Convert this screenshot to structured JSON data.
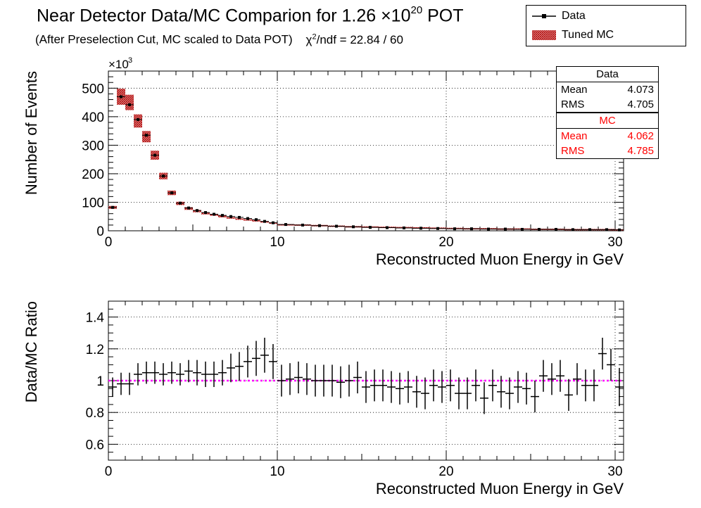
{
  "page": {
    "title": "Near Detector Data/MC Comparion for 1.26 ×10",
    "title_exp": "20",
    "title_suffix": " POT",
    "subtitle": "(After Preselection Cut, MC scaled to Data POT)",
    "chi2_label": "χ",
    "chi2_exp": "2",
    "chi2_value": "/ndf = 22.84 / 60"
  },
  "legend": [
    {
      "label": "Data",
      "style": "marker-line",
      "color": "#000000"
    },
    {
      "label": "Tuned MC",
      "style": "hatched-fill",
      "color": "#c00000"
    }
  ],
  "stats": {
    "data": {
      "title": "Data",
      "mean_label": "Mean",
      "mean": "4.073",
      "rms_label": "RMS",
      "rms": "4.705",
      "color": "#000000"
    },
    "mc": {
      "title": "MC",
      "mean_label": "Mean",
      "mean": "4.062",
      "rms_label": "RMS",
      "rms": "4.785",
      "color": "#ff0000"
    }
  },
  "chart_data": [
    {
      "type": "histogram",
      "xlabel": "Reconstructed Muon Energy in GeV",
      "ylabel": "Number of Events",
      "y_multiplier_label": "×10",
      "y_multiplier_exp": "3",
      "xlim": [
        0,
        30.5
      ],
      "ylim": [
        0,
        560
      ],
      "x_ticks": [
        0,
        10,
        20,
        30
      ],
      "y_ticks": [
        0,
        100,
        200,
        300,
        400,
        500
      ],
      "grid": true,
      "x": [
        0.25,
        0.75,
        1.25,
        1.75,
        2.25,
        2.75,
        3.25,
        3.75,
        4.25,
        4.75,
        5.25,
        5.75,
        6.25,
        6.75,
        7.25,
        7.75,
        8.25,
        8.75,
        9.25,
        9.75,
        10.5,
        11.5,
        12.5,
        13.5,
        14.5,
        15.5,
        16.5,
        17.5,
        18.5,
        19.5,
        20.5,
        21.5,
        22.5,
        23.5,
        24.5,
        25.5,
        26.5,
        27.5,
        28.5,
        29.5,
        30.25
      ],
      "series": [
        {
          "name": "Data",
          "values": [
            82,
            470,
            442,
            390,
            335,
            265,
            192,
            133,
            97,
            80,
            71,
            64,
            58,
            54,
            50,
            47,
            43,
            39,
            33,
            28,
            22,
            20,
            18,
            16,
            14,
            12,
            11,
            10,
            9,
            8,
            7,
            7,
            6,
            6,
            5,
            5,
            5,
            4,
            4,
            4,
            3
          ]
        },
        {
          "name": "Tuned MC",
          "values": [
            82,
            470,
            450,
            385,
            330,
            265,
            192,
            133,
            96,
            78,
            69,
            61,
            56,
            50,
            45,
            41,
            38,
            35,
            31,
            27,
            21,
            20,
            18,
            16,
            14,
            13,
            12,
            11,
            10,
            9,
            8,
            7,
            7,
            6,
            6,
            5,
            5,
            4,
            4,
            4,
            3
          ]
        }
      ]
    },
    {
      "type": "scatter",
      "xlabel": "Reconstructed Muon Energy in GeV",
      "ylabel": "Data/MC Ratio",
      "xlim": [
        0,
        30.5
      ],
      "ylim": [
        0.5,
        1.5
      ],
      "x_ticks": [
        0,
        10,
        20,
        30
      ],
      "y_ticks": [
        0.6,
        0.8,
        1,
        1.2,
        1.4
      ],
      "grid": true,
      "reference_line": {
        "value": 1,
        "color": "#ff00ff"
      },
      "x": [
        0.25,
        0.75,
        1.25,
        1.75,
        2.25,
        2.75,
        3.25,
        3.75,
        4.25,
        4.75,
        5.25,
        5.75,
        6.25,
        6.75,
        7.25,
        7.75,
        8.25,
        8.75,
        9.25,
        9.75,
        10.25,
        10.75,
        11.25,
        11.75,
        12.25,
        12.75,
        13.25,
        13.75,
        14.25,
        14.75,
        15.25,
        15.75,
        16.25,
        16.75,
        17.25,
        17.75,
        18.25,
        18.75,
        19.25,
        19.75,
        20.25,
        20.75,
        21.25,
        21.75,
        22.25,
        22.75,
        23.25,
        23.75,
        24.25,
        24.75,
        25.25,
        25.75,
        26.25,
        26.75,
        27.25,
        27.75,
        28.25,
        28.75,
        29.25,
        29.75,
        30.25
      ],
      "values": [
        0.96,
        0.98,
        0.98,
        1.04,
        1.05,
        1.05,
        1.04,
        1.05,
        1.04,
        1.06,
        1.05,
        1.04,
        1.04,
        1.05,
        1.08,
        1.09,
        1.12,
        1.14,
        1.16,
        1.12,
        1.0,
        1.01,
        1.02,
        1.01,
        1.0,
        1.0,
        1.0,
        0.99,
        1.0,
        1.02,
        0.96,
        0.97,
        0.97,
        0.96,
        0.95,
        0.96,
        0.93,
        0.92,
        0.97,
        0.96,
        0.97,
        0.92,
        0.92,
        0.97,
        0.89,
        0.97,
        0.93,
        0.92,
        0.96,
        0.95,
        0.9,
        1.03,
        1.01,
        1.03,
        0.91,
        1.01,
        0.97,
        0.97,
        1.17,
        1.1,
        0.96
      ],
      "errors": [
        0.06,
        0.07,
        0.07,
        0.07,
        0.07,
        0.07,
        0.07,
        0.07,
        0.07,
        0.07,
        0.08,
        0.08,
        0.08,
        0.08,
        0.09,
        0.09,
        0.1,
        0.11,
        0.11,
        0.11,
        0.1,
        0.1,
        0.1,
        0.1,
        0.1,
        0.1,
        0.1,
        0.1,
        0.1,
        0.1,
        0.1,
        0.1,
        0.1,
        0.1,
        0.1,
        0.1,
        0.1,
        0.1,
        0.1,
        0.1,
        0.1,
        0.1,
        0.1,
        0.1,
        0.1,
        0.1,
        0.1,
        0.1,
        0.1,
        0.1,
        0.1,
        0.1,
        0.1,
        0.1,
        0.1,
        0.1,
        0.1,
        0.1,
        0.1,
        0.1,
        0.12
      ]
    }
  ]
}
